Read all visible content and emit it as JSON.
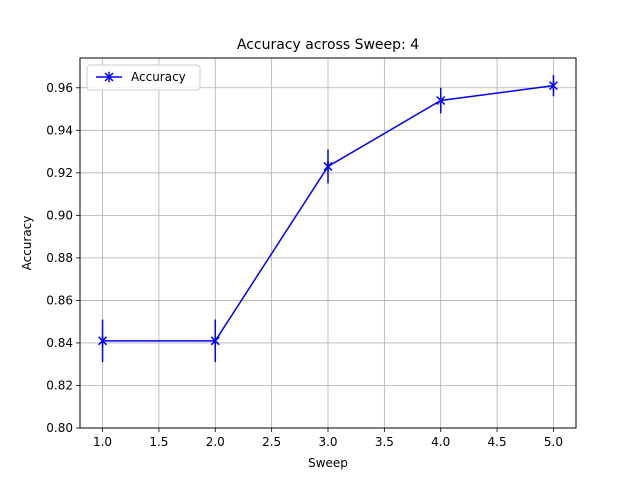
{
  "chart_data": {
    "type": "line",
    "title": "Accuracy across Sweep: 4",
    "xlabel": "Sweep",
    "ylabel": "Accuracy",
    "xlim": [
      0.8,
      5.2
    ],
    "ylim": [
      0.8,
      0.974
    ],
    "x_ticks": [
      1.0,
      1.5,
      2.0,
      2.5,
      3.0,
      3.5,
      4.0,
      4.5,
      5.0
    ],
    "x_tick_labels": [
      "1.0",
      "1.5",
      "2.0",
      "2.5",
      "3.0",
      "3.5",
      "4.0",
      "4.5",
      "5.0"
    ],
    "y_ticks": [
      0.8,
      0.82,
      0.84,
      0.86,
      0.88,
      0.9,
      0.92,
      0.94,
      0.96
    ],
    "y_tick_labels": [
      "0.80",
      "0.82",
      "0.84",
      "0.86",
      "0.88",
      "0.90",
      "0.92",
      "0.94",
      "0.96"
    ],
    "grid": true,
    "legend_position": "top-left",
    "series": [
      {
        "name": "Accuracy",
        "color": "#0000ff",
        "marker": "x-star",
        "x": [
          1,
          2,
          3,
          4,
          5
        ],
        "y": [
          0.841,
          0.841,
          0.923,
          0.954,
          0.961
        ],
        "error": [
          0.01,
          0.01,
          0.008,
          0.006,
          0.005
        ]
      }
    ]
  }
}
